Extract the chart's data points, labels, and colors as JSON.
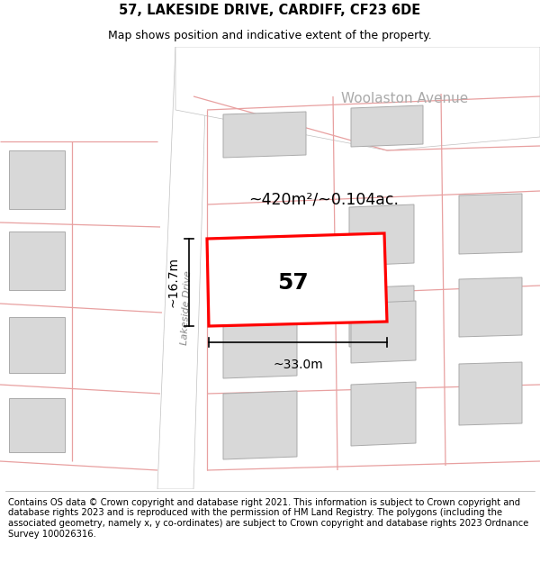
{
  "title": "57, LAKESIDE DRIVE, CARDIFF, CF23 6DE",
  "subtitle": "Map shows position and indicative extent of the property.",
  "footer": "Contains OS data © Crown copyright and database right 2021. This information is subject to Crown copyright and database rights 2023 and is reproduced with the permission of HM Land Registry. The polygons (including the associated geometry, namely x, y co-ordinates) are subject to Crown copyright and database rights 2023 Ordnance Survey 100026316.",
  "map_bg": "#f2f2ee",
  "highlight_color": "#ff0000",
  "street_label": "Lakeside Drive",
  "street_label2": "Woolaston Avenue",
  "area_label": "~420m²/~0.104ac.",
  "dim_width": "~33.0m",
  "dim_height": "~16.7m",
  "number_label": "57",
  "footer_fontsize": 7.2,
  "title_fontsize": 10.5,
  "subtitle_fontsize": 9,
  "bldg_fill": "#d8d8d8",
  "bldg_edge": "#aaaaaa",
  "road_fill": "#ffffff",
  "pink": "#e8a0a0",
  "pink_lw": 0.9
}
